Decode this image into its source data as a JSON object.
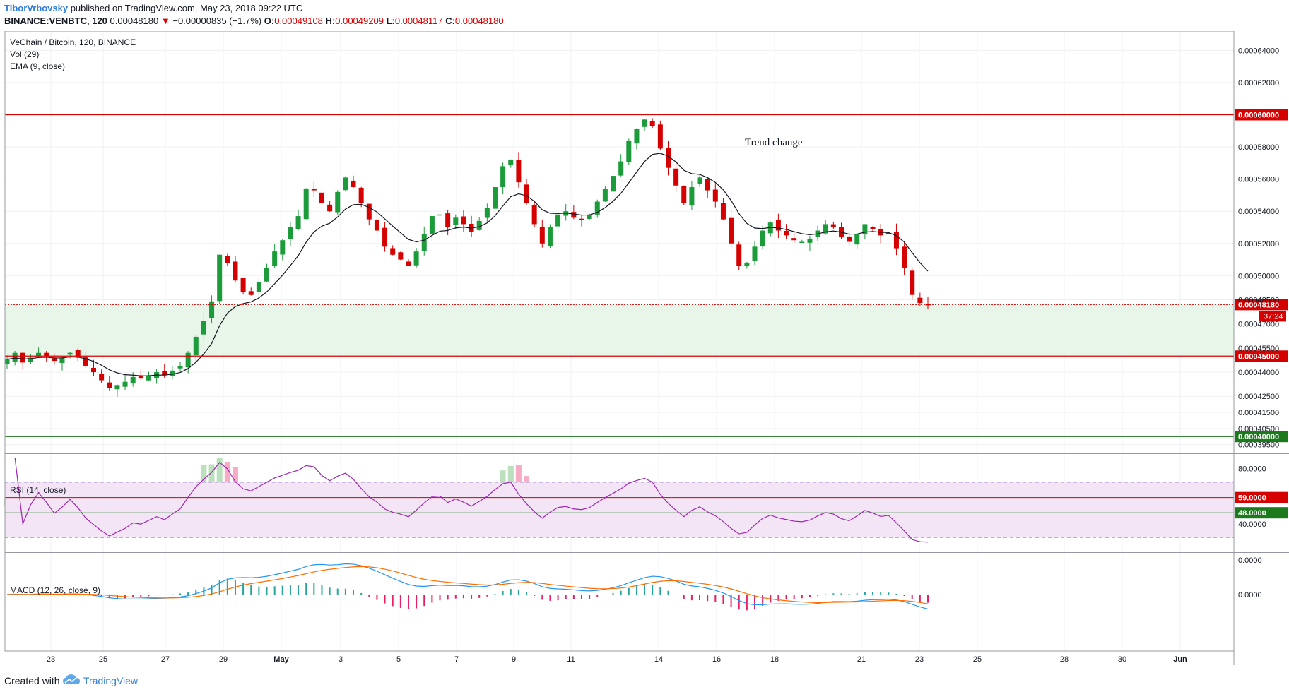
{
  "header": {
    "author": "TiborVrbovsky",
    "published": " published on TradingView.com, May 23, 2018 09:22 UTC",
    "symbol": "BINANCE:VENBTC, 120",
    "last": "0.00048180",
    "arrow": "▼",
    "change": "−0.00000835 (−1.7%)",
    "o_label": "O:",
    "o_value": "0.00049108",
    "h_label": "H:",
    "h_value": "0.00049209",
    "l_label": "L:",
    "l_value": "0.00048117",
    "c_label": "C:",
    "c_value": "0.00048180"
  },
  "legend": {
    "title": "VeChain / Bitcoin, 120, BINANCE",
    "vol": "Vol (29)",
    "ema": "EMA (9, close)",
    "rsi": "RSI (14, close)",
    "macd": "MACD (12, 26, close, 9)"
  },
  "annotation": "Trend change",
  "price_labels": {
    "resistance": "0.00060000",
    "support": "0.00045000",
    "low": "0.00040000",
    "last": "0.00048180",
    "countdown": "37:24"
  },
  "rsi_labels": {
    "upper": "59.0000",
    "lower": "48.0000"
  },
  "footer": {
    "created": "Created with",
    "brand": "TradingView"
  },
  "colors": {
    "up": "#26a69a",
    "up_candle": "#1b9b3a",
    "down": "#d50000",
    "ema": "#131722",
    "rsi": "#9c27b0",
    "macd": "#2196f3",
    "signal": "#ff6d00",
    "hist_pos": "#26a69a",
    "hist_neg": "#e91e63",
    "zone_fill": "#e8f5e9",
    "rsi_band": "#f3e5f5"
  },
  "chart_data": {
    "type": "candlestick",
    "symbol": "BINANCE:VENBTC",
    "interval": "120",
    "x_ticks": [
      "23",
      "25",
      "27",
      "29",
      "May",
      "3",
      "5",
      "7",
      "9",
      "11",
      "14",
      "16",
      "18",
      "21",
      "23",
      "25",
      "28",
      "30",
      "Jun"
    ],
    "y_ticks": [
      "0.00064000",
      "0.00062000",
      "0.00058000",
      "0.00056000",
      "0.00054000",
      "0.00052000",
      "0.00050000",
      "0.00048500",
      "0.00047000",
      "0.00045500",
      "0.00044000",
      "0.00042500",
      "0.00041500",
      "0.00040500",
      "0.00039500"
    ],
    "ylim": [
      0.00039,
      0.000652
    ],
    "horizontal_lines": [
      {
        "price": 0.0006,
        "label": "0.00060000",
        "color": "#d50000"
      },
      {
        "price": 0.00045,
        "label": "0.00045000",
        "color": "#d50000"
      },
      {
        "price": 0.0004,
        "label": "0.00040000",
        "color": "#1b7a1b"
      }
    ],
    "support_zone": [
      0.00045,
      0.000482
    ],
    "close_series": [
      0.000448,
      0.000452,
      0.000446,
      0.000449,
      0.000452,
      0.00045,
      0.000447,
      0.000449,
      0.000452,
      0.000449,
      0.000444,
      0.00044,
      0.000435,
      0.00043,
      0.000432,
      0.000434,
      0.000437,
      0.000436,
      0.000438,
      0.00044,
      0.000438,
      0.000441,
      0.000444,
      0.000452,
      0.000462,
      0.000472,
      0.000484,
      0.000513,
      0.000508,
      0.000497,
      0.00049,
      0.000488,
      0.000496,
      0.000505,
      0.000515,
      0.000522,
      0.00053,
      0.000537,
      0.000554,
      0.000553,
      0.000545,
      0.00054,
      0.000552,
      0.000561,
      0.000555,
      0.000545,
      0.000535,
      0.000528,
      0.000518,
      0.000513,
      0.00051,
      0.000506,
      0.000515,
      0.000526,
      0.000537,
      0.000538,
      0.00053,
      0.000536,
      0.000532,
      0.000527,
      0.000534,
      0.000542,
      0.000555,
      0.000568,
      0.000572,
      0.000558,
      0.000545,
      0.000532,
      0.00052,
      0.00053,
      0.000538,
      0.00054,
      0.000536,
      0.000535,
      0.000538,
      0.000546,
      0.000554,
      0.000562,
      0.000571,
      0.000584,
      0.000591,
      0.000597,
      0.000593,
      0.000579,
      0.000567,
      0.000556,
      0.000545,
      0.000555,
      0.000561,
      0.000553,
      0.000546,
      0.000535,
      0.00052,
      0.000506,
      0.000508,
      0.000518,
      0.000528,
      0.000533,
      0.000528,
      0.000525,
      0.000522,
      0.000521,
      0.000523,
      0.000528,
      0.000532,
      0.00053,
      0.000524,
      0.000521,
      0.000526,
      0.000532,
      0.000529,
      0.000525,
      0.000526,
      0.000517,
      0.000505,
      0.000488,
      0.000483,
      0.000482
    ],
    "ema_period": 9,
    "volume_last": "bars, scale relative (Vol 29)",
    "rsi": {
      "period": 14,
      "upper_band": 70,
      "lower_band": 30,
      "levels": [
        59,
        48
      ],
      "y_ticks": [
        "80.0000",
        "40.0000"
      ],
      "ylim": [
        20,
        90
      ]
    },
    "macd": {
      "params": [
        12,
        26,
        9
      ],
      "y_ticks": [
        "0.0000",
        "0.0000"
      ]
    }
  }
}
